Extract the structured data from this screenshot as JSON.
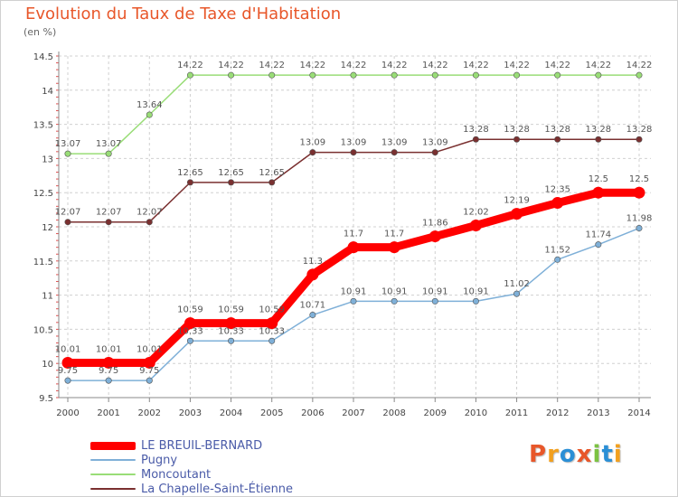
{
  "title": "Evolution du Taux de Taxe d'Habitation",
  "unit_label": "(en %)",
  "logo": {
    "letters": [
      "P",
      "r",
      "o",
      "x",
      "i",
      "t",
      "i"
    ],
    "colors": [
      "#e8572a",
      "#f2a01e",
      "#2a8fd6",
      "#e8572a",
      "#7cc242",
      "#2a8fd6",
      "#f2a01e"
    ]
  },
  "chart_data": {
    "type": "line",
    "x": [
      "2000",
      "2001",
      "2002",
      "2003",
      "2004",
      "2005",
      "2006",
      "2007",
      "2008",
      "2009",
      "2010",
      "2011",
      "2012",
      "2013",
      "2014"
    ],
    "ylim": [
      9.5,
      14.5
    ],
    "yticks": [
      "9.5",
      "10",
      "10.5",
      "11",
      "11.5",
      "12",
      "12.5",
      "13",
      "13.5",
      "14",
      "14.5"
    ],
    "grid": true,
    "legend_position": "bottom-left",
    "series": [
      {
        "name": "LE BREUIL-BERNARD",
        "color": "#ff0000",
        "values": [
          10.01,
          10.01,
          10.01,
          10.59,
          10.59,
          10.59,
          11.3,
          11.7,
          11.7,
          11.86,
          12.02,
          12.19,
          12.35,
          12.5,
          12.5
        ],
        "labels": [
          "10.01",
          "10.01",
          "10.01",
          "10.59",
          "10.59",
          "10.59",
          "11.3",
          "11.7",
          "11.7",
          "11.86",
          "12.02",
          "12.19",
          "12.35",
          "12.5",
          "12.5"
        ]
      },
      {
        "name": "Pugny",
        "color": "#7fb0d8",
        "values": [
          9.75,
          9.75,
          9.75,
          10.33,
          10.33,
          10.33,
          10.71,
          10.91,
          10.91,
          10.91,
          10.91,
          11.02,
          11.52,
          11.74,
          11.98
        ],
        "labels": [
          "9.75",
          "9.75",
          "9.75",
          "10.33",
          "10.33",
          "10.33",
          "10.71",
          "10.91",
          "10.91",
          "10.91",
          "10.91",
          "11.02",
          "11.52",
          "11.74",
          "11.98"
        ]
      },
      {
        "name": "Moncoutant",
        "color": "#99dd77",
        "values": [
          13.07,
          13.07,
          13.64,
          14.22,
          14.22,
          14.22,
          14.22,
          14.22,
          14.22,
          14.22,
          14.22,
          14.22,
          14.22,
          14.22,
          14.22
        ],
        "labels": [
          "13.07",
          "13.07",
          "13.64",
          "14.22",
          "14.22",
          "14.22",
          "14.22",
          "14.22",
          "14.22",
          "14.22",
          "14.22",
          "14.22",
          "14.22",
          "14.22",
          "14.22"
        ]
      },
      {
        "name": "La Chapelle-Saint-Étienne",
        "color": "#7a3030",
        "values": [
          12.07,
          12.07,
          12.07,
          12.65,
          12.65,
          12.65,
          13.09,
          13.09,
          13.09,
          13.09,
          13.28,
          13.28,
          13.28,
          13.28,
          13.28
        ],
        "labels": [
          "12.07",
          "12.07",
          "12.07",
          "12.65",
          "12.65",
          "12.65",
          "13.09",
          "13.09",
          "13.09",
          "13.09",
          "13.28",
          "13.28",
          "13.28",
          "13.28",
          "13.28"
        ]
      }
    ]
  }
}
